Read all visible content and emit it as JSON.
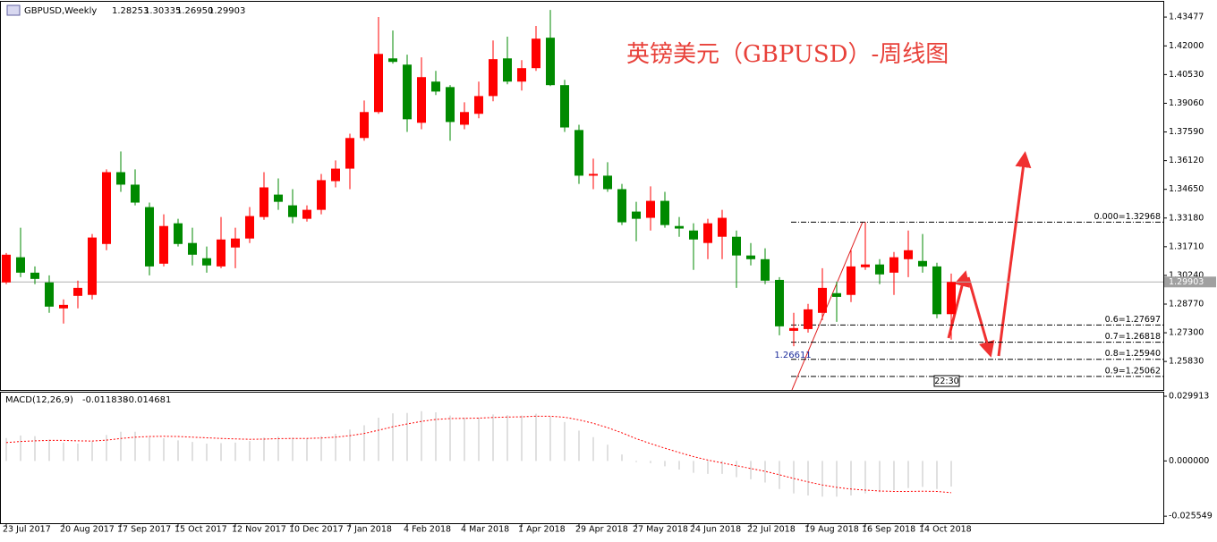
{
  "chart_data": [
    {
      "type": "candlestick",
      "symbol": "GBPUSD,Weekly",
      "ohlc_labels": [
        "1.28253",
        "1.30335",
        "1.26950",
        "1.29903"
      ],
      "title": "英镑美元（GBPUSD）-周线图",
      "categories": [
        "23 Jul 2017",
        null,
        null,
        null,
        "20 Aug 2017",
        null,
        null,
        null,
        "17 Sep 2017",
        null,
        null,
        null,
        "15 Oct 2017",
        null,
        null,
        null,
        "12 Nov 2017",
        null,
        null,
        null,
        "10 Dec 2017",
        null,
        null,
        null,
        "7 Jan 2018",
        null,
        null,
        null,
        "4 Feb 2018",
        null,
        null,
        null,
        "4 Mar 2018",
        null,
        null,
        null,
        "1 Apr 2018",
        null,
        null,
        null,
        "29 Apr 2018",
        null,
        null,
        null,
        "27 May 2018",
        null,
        null,
        null,
        "24 Jun 2018",
        null,
        null,
        null,
        "22 Jul 2018",
        null,
        null,
        null,
        "19 Aug 2018",
        null,
        null,
        null,
        "16 Sep 2018",
        null,
        null,
        null,
        "14 Oct 2018",
        null,
        null
      ],
      "open": [
        1.2988,
        1.3117,
        1.3038,
        1.2988,
        1.2855,
        1.2919,
        1.2924,
        1.3185,
        1.3553,
        1.3489,
        1.3374,
        1.3084,
        1.3291,
        1.319,
        1.3112,
        1.307,
        1.3167,
        1.3213,
        1.3323,
        1.3438,
        1.3383,
        1.3314,
        1.336,
        1.3507,
        1.3571,
        1.3728,
        1.3861,
        1.4136,
        1.4104,
        1.3806,
        1.4017,
        1.3989,
        1.3796,
        1.3852,
        1.3943,
        1.4136,
        1.4017,
        1.4086,
        1.4242,
        1.3999,
        1.3769,
        1.3535,
        1.3535,
        1.3466,
        1.3351,
        1.3319,
        1.3406,
        1.3277,
        1.3254,
        1.319,
        1.3222,
        1.3222,
        1.3126,
        1.3107,
        1.3001,
        1.274,
        1.2749,
        1.2832,
        1.2933,
        1.2924,
        1.3066,
        1.308,
        1.3038,
        1.3107,
        1.3098,
        1.307,
        1.28253
      ],
      "high": [
        1.3139,
        1.3268,
        1.307,
        1.3024,
        1.2901,
        1.2997,
        1.3236,
        1.3567,
        1.3659,
        1.3567,
        1.3397,
        1.3337,
        1.3314,
        1.3268,
        1.3172,
        1.3323,
        1.3268,
        1.3374,
        1.3553,
        1.3521,
        1.3466,
        1.3383,
        1.3544,
        1.3613,
        1.375,
        1.392,
        1.4348,
        1.4279,
        1.4155,
        1.4141,
        1.4072,
        1.3999,
        1.3911,
        1.4017,
        1.4228,
        1.4247,
        1.4127,
        1.4302,
        1.4384,
        1.4026,
        1.3796,
        1.3622,
        1.3604,
        1.3493,
        1.3401,
        1.348,
        1.3452,
        1.3323,
        1.3291,
        1.3314,
        1.336,
        1.3254,
        1.319,
        1.3163,
        1.3015,
        1.2832,
        1.2878,
        1.3061,
        1.2992,
        1.3153,
        1.3297,
        1.3107,
        1.3144,
        1.3254,
        1.3236,
        1.3089,
        1.30335
      ],
      "low": [
        1.2979,
        1.3015,
        1.2979,
        1.2832,
        1.2777,
        1.2855,
        1.2901,
        1.3153,
        1.3452,
        1.3383,
        1.3024,
        1.307,
        1.3172,
        1.3075,
        1.3038,
        1.3061,
        1.3061,
        1.319,
        1.3309,
        1.336,
        1.3291,
        1.33,
        1.3337,
        1.3475,
        1.3466,
        1.3714,
        1.3852,
        1.4109,
        1.3759,
        1.3773,
        1.3948,
        1.3714,
        1.3773,
        1.3829,
        1.3916,
        1.4003,
        1.3971,
        1.4072,
        1.3994,
        1.3759,
        1.3493,
        1.3466,
        1.3452,
        1.3282,
        1.3199,
        1.3254,
        1.3268,
        1.3222,
        1.3052,
        1.3107,
        1.3107,
        1.296,
        1.3075,
        1.2979,
        1.2717,
        1.2661,
        1.2731,
        1.2795,
        1.2786,
        1.2887,
        1.3052,
        1.2979,
        1.2924,
        1.3015,
        1.3038,
        1.2804,
        1.2695
      ],
      "close": [
        1.313,
        1.3038,
        1.3006,
        1.2864,
        1.2873,
        1.296,
        1.3218,
        1.3553,
        1.3489,
        1.3397,
        1.307,
        1.3277,
        1.3185,
        1.313,
        1.3075,
        1.3208,
        1.3213,
        1.3328,
        1.3475,
        1.3401,
        1.3323,
        1.336,
        1.3512,
        1.3571,
        1.3728,
        1.3861,
        1.4159,
        1.4118,
        1.3824,
        1.404,
        1.3966,
        1.381,
        1.3861,
        1.3943,
        1.4132,
        1.4017,
        1.4086,
        1.4237,
        1.3999,
        1.3782,
        1.3535,
        1.3544,
        1.3466,
        1.3296,
        1.3314,
        1.3406,
        1.3282,
        1.3264,
        1.3208,
        1.3291,
        1.3319,
        1.3126,
        1.3107,
        1.2997,
        1.2763,
        1.2754,
        1.285,
        1.296,
        1.2914,
        1.307,
        1.308,
        1.3029,
        1.3117,
        1.3153,
        1.307,
        1.2825,
        1.29903
      ],
      "up_color": "#ff0000",
      "down_color": "#008a00",
      "ylim": [
        1.2437,
        1.4426
      ],
      "yticks": [
        1.43477,
        {
          "value": 1.42,
          "label": "1.42000"
        },
        {
          "value": 1.4053,
          "label": "1.40530"
        },
        {
          "value": 1.3906,
          "label": "1.39060"
        },
        {
          "value": 1.3759,
          "label": "1.37590"
        },
        {
          "value": 1.3612,
          "label": "1.36120"
        },
        {
          "value": 1.3465,
          "label": "1.34650"
        },
        {
          "value": 1.3318,
          "label": "1.33180"
        },
        {
          "value": 1.3171,
          "label": "1.31710"
        },
        {
          "value": 1.3024,
          "label": "1.30240"
        },
        {
          "value": 1.2877,
          "label": "1.28770"
        },
        {
          "value": 1.273,
          "label": "1.27300"
        },
        {
          "value": 1.2583,
          "label": "1.25830"
        }
      ],
      "current_price": 1.29903,
      "fib_levels": [
        {
          "value": 1.32968,
          "label": "0.000=1.32968"
        },
        {
          "value": 1.27697,
          "label": "0.6=1.27697"
        },
        {
          "value": 1.26818,
          "label": "0.7=1.26818"
        },
        {
          "value": 1.2594,
          "label": "0.8=1.25940"
        },
        {
          "value": 1.25062,
          "label": "0.9=1.25062"
        }
      ],
      "low_marker": 1.26611,
      "countdown": "22:30"
    },
    {
      "type": "macd",
      "label": "MACD(12,26,9)",
      "main": [
        0.0106,
        0.0118,
        0.0115,
        0.0098,
        0.0085,
        0.008,
        0.009,
        0.012,
        0.0135,
        0.0135,
        0.011,
        0.0105,
        0.0095,
        0.0088,
        0.008,
        0.0082,
        0.0085,
        0.0092,
        0.0108,
        0.0112,
        0.0108,
        0.0105,
        0.0115,
        0.0125,
        0.0145,
        0.0165,
        0.02,
        0.022,
        0.0222,
        0.023,
        0.0225,
        0.021,
        0.02,
        0.02,
        0.0215,
        0.0212,
        0.021,
        0.0218,
        0.0205,
        0.018,
        0.014,
        0.011,
        0.0075,
        0.003,
        -0.0005,
        -0.001,
        -0.0025,
        -0.004,
        -0.0055,
        -0.006,
        -0.006,
        -0.0075,
        -0.0085,
        -0.01,
        -0.013,
        -0.015,
        -0.016,
        -0.0165,
        -0.0165,
        -0.016,
        -0.015,
        -0.0145,
        -0.0135,
        -0.0125,
        -0.012,
        -0.013,
        -0.011838
      ],
      "signal": [
        0.0085,
        0.009,
        0.0093,
        0.0095,
        0.0095,
        0.0093,
        0.0092,
        0.0096,
        0.0104,
        0.011,
        0.0113,
        0.0114,
        0.0113,
        0.011,
        0.0107,
        0.0104,
        0.0102,
        0.01,
        0.0101,
        0.0103,
        0.0104,
        0.0104,
        0.0106,
        0.011,
        0.0117,
        0.0127,
        0.0142,
        0.0158,
        0.0171,
        0.0183,
        0.0192,
        0.0196,
        0.0197,
        0.0198,
        0.0201,
        0.0203,
        0.0204,
        0.0207,
        0.0207,
        0.0202,
        0.019,
        0.0174,
        0.0154,
        0.013,
        0.0103,
        0.008,
        0.0059,
        0.0039,
        0.002,
        0.0004,
        -0.0009,
        -0.0022,
        -0.0035,
        -0.0048,
        -0.0064,
        -0.0081,
        -0.0097,
        -0.0111,
        -0.0122,
        -0.013,
        -0.0135,
        -0.0139,
        -0.0141,
        -0.0141,
        -0.014,
        -0.0141,
        -0.014681
      ],
      "main_color": "#c0c0c0",
      "signal_color": "#ff0000",
      "ylim": [
        -0.0288,
        0.032
      ],
      "yticks": [
        0.029913,
        {
          "value": 0,
          "label": "0.000000"
        },
        -0.025549
      ]
    }
  ]
}
